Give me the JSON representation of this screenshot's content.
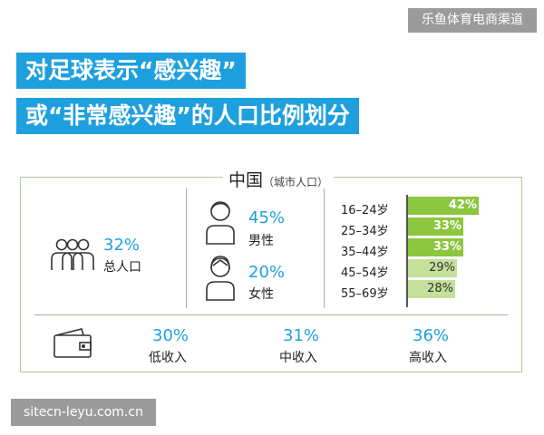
{
  "watermark_top": "乐鱼体育电商渠道",
  "watermark_bottom": "sitecn-leyu.com.cn",
  "title": {
    "line1": "对足球表示“感兴趣”",
    "line2": "或“非常感兴趣”的人口比例划分"
  },
  "panel": {
    "region": "中国",
    "region_note": "（城市人口）"
  },
  "total": {
    "percent": "32%",
    "label": "总人口",
    "icon": "people-group-icon"
  },
  "gender": [
    {
      "percent": "45%",
      "label": "男性",
      "icon": "male-icon"
    },
    {
      "percent": "20%",
      "label": "女性",
      "icon": "female-icon"
    }
  ],
  "age_groups": [
    {
      "label": "16–24岁",
      "value": 42,
      "text": "42%"
    },
    {
      "label": "25–34岁",
      "value": 33,
      "text": "33%"
    },
    {
      "label": "35–44岁",
      "value": 33,
      "text": "33%"
    },
    {
      "label": "45–54岁",
      "value": 29,
      "text": "29%"
    },
    {
      "label": "55–69岁",
      "value": 28,
      "text": "28%"
    }
  ],
  "age_scale_max": 42,
  "income": [
    {
      "percent": "30%",
      "label": "低收入"
    },
    {
      "percent": "31%",
      "label": "中收入"
    },
    {
      "percent": "36%",
      "label": "高收入"
    }
  ],
  "colors": {
    "accent_blue": "#1fa0de",
    "bar_dark": "#8cc63f",
    "bar_light": "#c4e09a",
    "panel_border": "#b3c89c"
  }
}
